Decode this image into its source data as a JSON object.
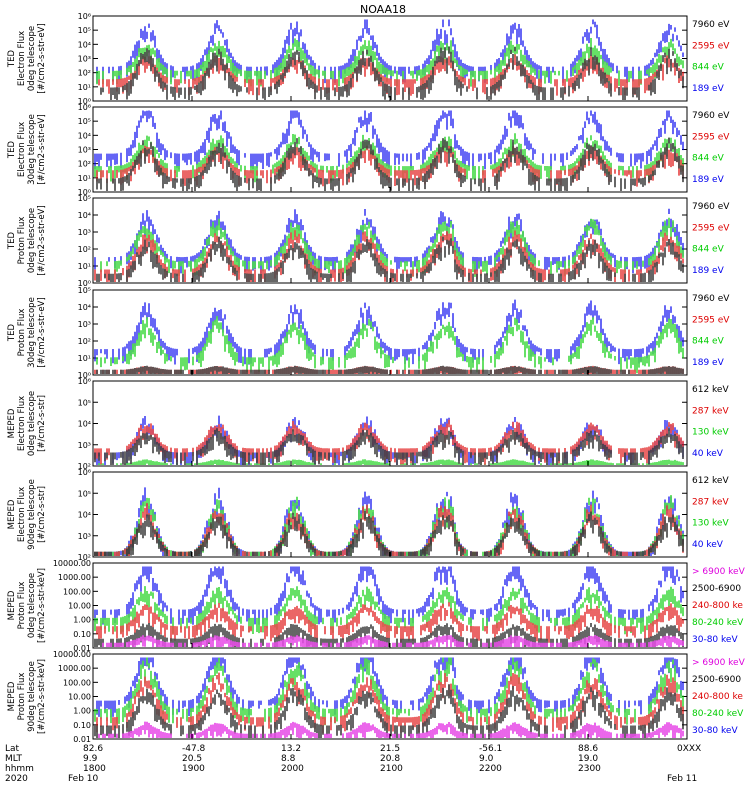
{
  "chart_data": {
    "type": "line",
    "title": "NOAA18",
    "x_start_label": "2020",
    "x_date_start": "Feb 10",
    "x_date_end": "Feb 11",
    "x_row_labels": [
      "Lat",
      "MLT",
      "hhmm",
      "2020"
    ],
    "x_ticks": [
      {
        "lat": "82.6",
        "mlt": "9.9",
        "hhmm": "1800"
      },
      {
        "lat": "-47.8",
        "mlt": "20.5",
        "hhmm": "1900"
      },
      {
        "lat": "13.2",
        "mlt": "8.8",
        "hhmm": "2000"
      },
      {
        "lat": "21.5",
        "mlt": "20.8",
        "hhmm": "2100"
      },
      {
        "lat": "-56.1",
        "mlt": "9.0",
        "hhmm": "2200"
      },
      {
        "lat": "88.6",
        "mlt": "19.0",
        "hhmm": "2300"
      },
      {
        "lat": "0XXX",
        "mlt": "",
        "hhmm": ""
      }
    ],
    "panels": [
      {
        "ylabel": [
          "TED",
          "Electron Flux",
          "0deg telescope",
          "[#/cm2-s-str-eV]"
        ],
        "scale": "log",
        "ylim_exp": [
          0,
          6
        ],
        "yticks": [
          "10⁰",
          "10¹",
          "10²",
          "10³",
          "10⁴",
          "10⁵",
          "10⁶"
        ],
        "series": [
          {
            "name": "7960 eV",
            "color": "#000000"
          },
          {
            "name": "2595 eV",
            "color": "#dd0000"
          },
          {
            "name": "844 eV",
            "color": "#00cc00"
          },
          {
            "name": "189 eV",
            "color": "#0000ee"
          }
        ],
        "levels": [
          0.5,
          0.3,
          0.4,
          0.6
        ],
        "base": [
          0.15,
          0.25,
          0.35,
          0.4
        ]
      },
      {
        "ylabel": [
          "TED",
          "Electron Flux",
          "30deg telescope",
          "[#/cm2-s-str-eV]"
        ],
        "scale": "log",
        "ylim_exp": [
          0,
          6
        ],
        "yticks": [
          "10⁰",
          "10¹",
          "10²",
          "10³",
          "10⁴",
          "10⁵",
          "10⁶"
        ],
        "series": [
          {
            "name": "7960 eV",
            "color": "#000000"
          },
          {
            "name": "2595 eV",
            "color": "#dd0000"
          },
          {
            "name": "844 eV",
            "color": "#00cc00"
          },
          {
            "name": "189 eV",
            "color": "#0000ee"
          }
        ],
        "levels": [
          0.5,
          0.3,
          0.4,
          0.6
        ],
        "base": [
          0.15,
          0.25,
          0.3,
          0.45
        ]
      },
      {
        "ylabel": [
          "TED",
          "Proton Flux",
          "0deg telescope",
          "[#/cm2-s-str-eV]"
        ],
        "scale": "log",
        "ylim_exp": [
          0,
          5
        ],
        "yticks": [
          "10⁰",
          "10¹",
          "10²",
          "10³",
          "10⁴",
          "10⁵"
        ],
        "series": [
          {
            "name": "7960 eV",
            "color": "#000000"
          },
          {
            "name": "2595 eV",
            "color": "#dd0000"
          },
          {
            "name": "844 eV",
            "color": "#00cc00"
          },
          {
            "name": "189 eV",
            "color": "#0000ee"
          }
        ],
        "levels": [
          0.45,
          0.5,
          0.55,
          0.6
        ],
        "base": [
          0.1,
          0.15,
          0.25,
          0.3
        ]
      },
      {
        "ylabel": [
          "TED",
          "Proton Flux",
          "30deg telescope",
          "[#/cm2-s-str-eV]"
        ],
        "scale": "log",
        "ylim_exp": [
          0,
          5
        ],
        "yticks": [
          "10⁰",
          "10¹",
          "10²",
          "10³",
          "10⁴",
          "10⁵"
        ],
        "series": [
          {
            "name": "7960 eV",
            "color": "#000000"
          },
          {
            "name": "2595 eV",
            "color": "#dd0000"
          },
          {
            "name": "844 eV",
            "color": "#00cc00"
          },
          {
            "name": "189 eV",
            "color": "#0000ee"
          }
        ],
        "levels": [
          0.05,
          0.05,
          0.5,
          0.6
        ],
        "base": [
          0.05,
          0.05,
          0.2,
          0.3
        ]
      },
      {
        "ylabel": [
          "MEPED",
          "Electron Flux",
          "0deg telescope",
          "[#/cm2-s-str]"
        ],
        "scale": "log",
        "ylim_exp": [
          2,
          6
        ],
        "yticks": [
          "10²",
          "10³",
          "10⁴",
          "10⁵",
          "10⁶"
        ],
        "series": [
          {
            "name": "612 keV",
            "color": "#000000"
          },
          {
            "name": "287 keV",
            "color": "#dd0000"
          },
          {
            "name": "130 keV",
            "color": "#00cc00"
          },
          {
            "name": "40 keV",
            "color": "#0000ee"
          }
        ],
        "levels": [
          0.3,
          0.35,
          0.05,
          0.45
        ],
        "base": [
          0.15,
          0.2,
          0.02,
          0.15
        ]
      },
      {
        "ylabel": [
          "MEPED",
          "Electron Flux",
          "90deg telescope",
          "[#/cm2-s-str]"
        ],
        "scale": "log",
        "ylim_exp": [
          2,
          6
        ],
        "yticks": [
          "10²",
          "10³",
          "10⁴",
          "10⁵",
          "10⁶"
        ],
        "series": [
          {
            "name": "612 keV",
            "color": "#000000"
          },
          {
            "name": "287 keV",
            "color": "#dd0000"
          },
          {
            "name": "130 keV",
            "color": "#00cc00"
          },
          {
            "name": "40 keV",
            "color": "#0000ee"
          }
        ],
        "levels": [
          0.5,
          0.6,
          0.7,
          0.8
        ],
        "base": [
          0.05,
          0.05,
          0.05,
          0.05
        ]
      },
      {
        "ylabel": [
          "MEPED",
          "Proton Flux",
          "0deg telescope",
          "[#/cm2-s-str-keV]"
        ],
        "scale": "log",
        "ylim_exp": [
          -2,
          4
        ],
        "yticks": [
          "0.01",
          "0.10",
          "1.00",
          "10.00",
          "100.00",
          "1000.00",
          "10000.00"
        ],
        "series": [
          {
            "name": "> 6900 keV",
            "color": "#dd00dd"
          },
          {
            "name": "2500-6900",
            "color": "#000000"
          },
          {
            "name": "240-800 ke",
            "color": "#dd0000"
          },
          {
            "name": "80-240 keV",
            "color": "#00cc00"
          },
          {
            "name": "30-80 keV",
            "color": "#0000ee"
          }
        ],
        "levels": [
          0.1,
          0.2,
          0.3,
          0.4,
          0.7
        ],
        "base": [
          0.05,
          0.1,
          0.25,
          0.35,
          0.45
        ]
      },
      {
        "ylabel": [
          "MEPED",
          "Proton Flux",
          "90deg telescope",
          "[#/cm2-s-str-keV]"
        ],
        "scale": "log",
        "ylim_exp": [
          -2,
          4
        ],
        "yticks": [
          "0.01",
          "0.10",
          "1.00",
          "10.00",
          "100.00",
          "1000.00",
          "10000.00"
        ],
        "series": [
          {
            "name": "> 6900 keV",
            "color": "#dd00dd"
          },
          {
            "name": "2500-6900",
            "color": "#000000"
          },
          {
            "name": "240-800 ke",
            "color": "#dd0000"
          },
          {
            "name": "80-240 keV",
            "color": "#00cc00"
          },
          {
            "name": "30-80 keV",
            "color": "#0000ee"
          }
        ],
        "levels": [
          0.15,
          0.5,
          0.55,
          0.65,
          0.75
        ],
        "base": [
          0.05,
          0.15,
          0.25,
          0.35,
          0.45
        ]
      }
    ],
    "passes": [
      0.09,
      0.21,
      0.34,
      0.46,
      0.59,
      0.71,
      0.84,
      0.97
    ],
    "strong_pass": [
      0.6,
      0.3,
      0.25
    ]
  }
}
